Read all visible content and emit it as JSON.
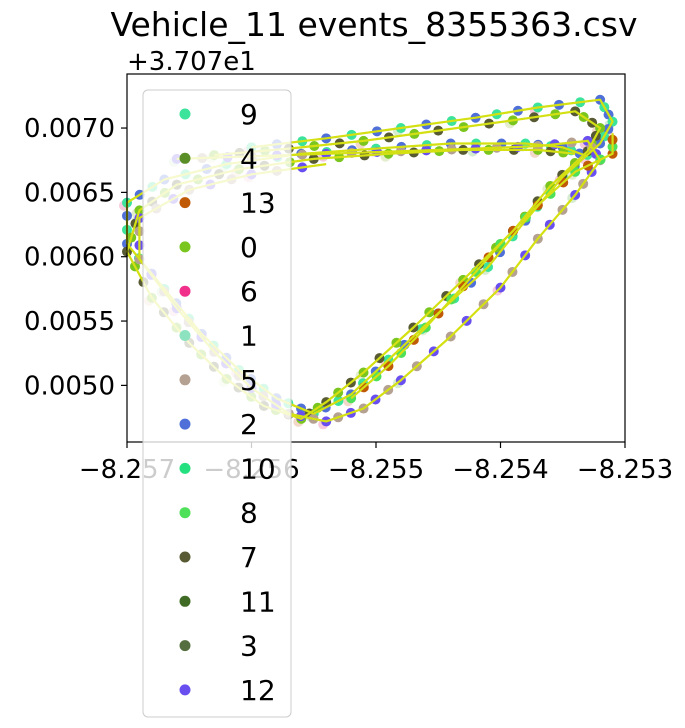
{
  "chart_data": {
    "type": "scatter",
    "title": "Vehicle_11 events_8355363.csv",
    "xlabel": "",
    "ylabel": "",
    "y_offset_text": "+3.707e1",
    "xlim": [
      -8.257,
      -8.253
    ],
    "ylim": [
      0.00456,
      0.00742
    ],
    "x_ticks": [
      -8.257,
      -8.256,
      -8.255,
      -8.254,
      -8.253
    ],
    "x_tick_labels": [
      "−8.257",
      "−8.256",
      "−8.255",
      "−8.254",
      "−8.253"
    ],
    "y_ticks": [
      0.005,
      0.0055,
      0.006,
      0.0065,
      0.007
    ],
    "y_tick_labels": [
      "0.0050",
      "0.0055",
      "0.0060",
      "0.0065",
      "0.0070"
    ],
    "grid": false,
    "legend_position": "upper-left",
    "route_loops": [
      [
        [
          -8.256,
          0.00685
        ],
        [
          -8.2554,
          0.00692
        ],
        [
          -8.2548,
          0.007
        ],
        [
          -8.2542,
          0.00708
        ],
        [
          -8.2537,
          0.00716
        ],
        [
          -8.2532,
          0.00722
        ],
        [
          -8.2531,
          0.00705
        ],
        [
          -8.2532,
          0.00688
        ],
        [
          -8.2535,
          0.00662
        ],
        [
          -8.2538,
          0.00628
        ],
        [
          -8.2541,
          0.00592
        ],
        [
          -8.2545,
          0.00556
        ],
        [
          -8.2549,
          0.0052
        ],
        [
          -8.2552,
          0.00493
        ],
        [
          -8.2555,
          0.00478
        ],
        [
          -8.2558,
          0.0049
        ],
        [
          -8.2561,
          0.00512
        ],
        [
          -8.2564,
          0.0054
        ],
        [
          -8.2567,
          0.00575
        ],
        [
          -8.257,
          0.0061
        ],
        [
          -8.257,
          0.00642
        ],
        [
          -8.2567,
          0.0066
        ],
        [
          -8.2562,
          0.00672
        ],
        [
          -8.2556,
          0.0068
        ],
        [
          -8.255,
          0.00684
        ],
        [
          -8.2544,
          0.00688
        ],
        [
          -8.2538,
          0.00688
        ],
        [
          -8.2535,
          0.00685
        ],
        [
          -8.2533,
          0.00678
        ]
      ],
      [
        [
          -8.2563,
          0.00679
        ],
        [
          -8.2557,
          0.00684
        ],
        [
          -8.2551,
          0.0069
        ],
        [
          -8.2545,
          0.00698
        ],
        [
          -8.2539,
          0.00706
        ],
        [
          -8.2534,
          0.00713
        ],
        [
          -8.2532,
          0.007
        ],
        [
          -8.2533,
          0.00682
        ],
        [
          -8.2536,
          0.00655
        ],
        [
          -8.2539,
          0.0062
        ],
        [
          -8.2543,
          0.00582
        ],
        [
          -8.2547,
          0.00545
        ],
        [
          -8.2551,
          0.0051
        ],
        [
          -8.2554,
          0.00487
        ],
        [
          -8.2556,
          0.00474
        ],
        [
          -8.2559,
          0.00484
        ],
        [
          -8.2562,
          0.00505
        ],
        [
          -8.2565,
          0.00533
        ],
        [
          -8.2568,
          0.00568
        ],
        [
          -8.257,
          0.00604
        ],
        [
          -8.2569,
          0.00636
        ],
        [
          -8.2566,
          0.00656
        ],
        [
          -8.2561,
          0.00668
        ],
        [
          -8.2555,
          0.00676
        ],
        [
          -8.2549,
          0.0068
        ],
        [
          -8.2543,
          0.00683
        ],
        [
          -8.2537,
          0.00683
        ],
        [
          -8.2534,
          0.0068
        ]
      ],
      [
        [
          -8.2566,
          0.00676
        ],
        [
          -8.256,
          0.00678
        ],
        [
          -8.2554,
          0.0068
        ],
        [
          -8.2548,
          0.00682
        ],
        [
          -8.2542,
          0.00684
        ],
        [
          -8.2537,
          0.00686
        ],
        [
          -8.2533,
          0.0069
        ],
        [
          -8.2532,
          0.00675
        ],
        [
          -8.2534,
          0.00648
        ],
        [
          -8.2537,
          0.00614
        ],
        [
          -8.254,
          0.00576
        ],
        [
          -8.2544,
          0.00538
        ],
        [
          -8.2548,
          0.00504
        ],
        [
          -8.2551,
          0.00482
        ],
        [
          -8.2554,
          0.00472
        ],
        [
          -8.2557,
          0.00478
        ],
        [
          -8.256,
          0.00498
        ],
        [
          -8.2563,
          0.00526
        ],
        [
          -8.2566,
          0.0056
        ],
        [
          -8.2569,
          0.00598
        ],
        [
          -8.2569,
          0.0063
        ],
        [
          -8.2565,
          0.00652
        ],
        [
          -8.256,
          0.00664
        ],
        [
          -8.2554,
          0.00672
        ]
      ],
      [
        [
          -8.2552,
          0.0049
        ],
        [
          -8.2549,
          0.00515
        ],
        [
          -8.2546,
          0.00545
        ],
        [
          -8.2543,
          0.00577
        ],
        [
          -8.254,
          0.0061
        ],
        [
          -8.2537,
          0.0064
        ],
        [
          -8.2534,
          0.00666
        ],
        [
          -8.2531,
          0.0068
        ],
        [
          -8.2531,
          0.00696
        ]
      ]
    ],
    "series": [
      {
        "name": "9",
        "color": "#3be39b"
      },
      {
        "name": "4",
        "color": "#5a8f28"
      },
      {
        "name": "13",
        "color": "#c05a07"
      },
      {
        "name": "0",
        "color": "#7ac61e"
      },
      {
        "name": "6",
        "color": "#f0308a"
      },
      {
        "name": "1",
        "color": "#8de3bf"
      },
      {
        "name": "5",
        "color": "#b4a191"
      },
      {
        "name": "2",
        "color": "#4f70d8"
      },
      {
        "name": "10",
        "color": "#24e07f"
      },
      {
        "name": "8",
        "color": "#4fe05a"
      },
      {
        "name": "7",
        "color": "#575a32"
      },
      {
        "name": "11",
        "color": "#3f6b24"
      },
      {
        "name": "3",
        "color": "#546e3f"
      },
      {
        "name": "12",
        "color": "#6a4ff0"
      }
    ],
    "track_line_color": "#d4e012",
    "faint_point_colors": [
      "#f6c9dc",
      "#e5edcf",
      "#d6ecd1",
      "#f2d8c9"
    ]
  }
}
